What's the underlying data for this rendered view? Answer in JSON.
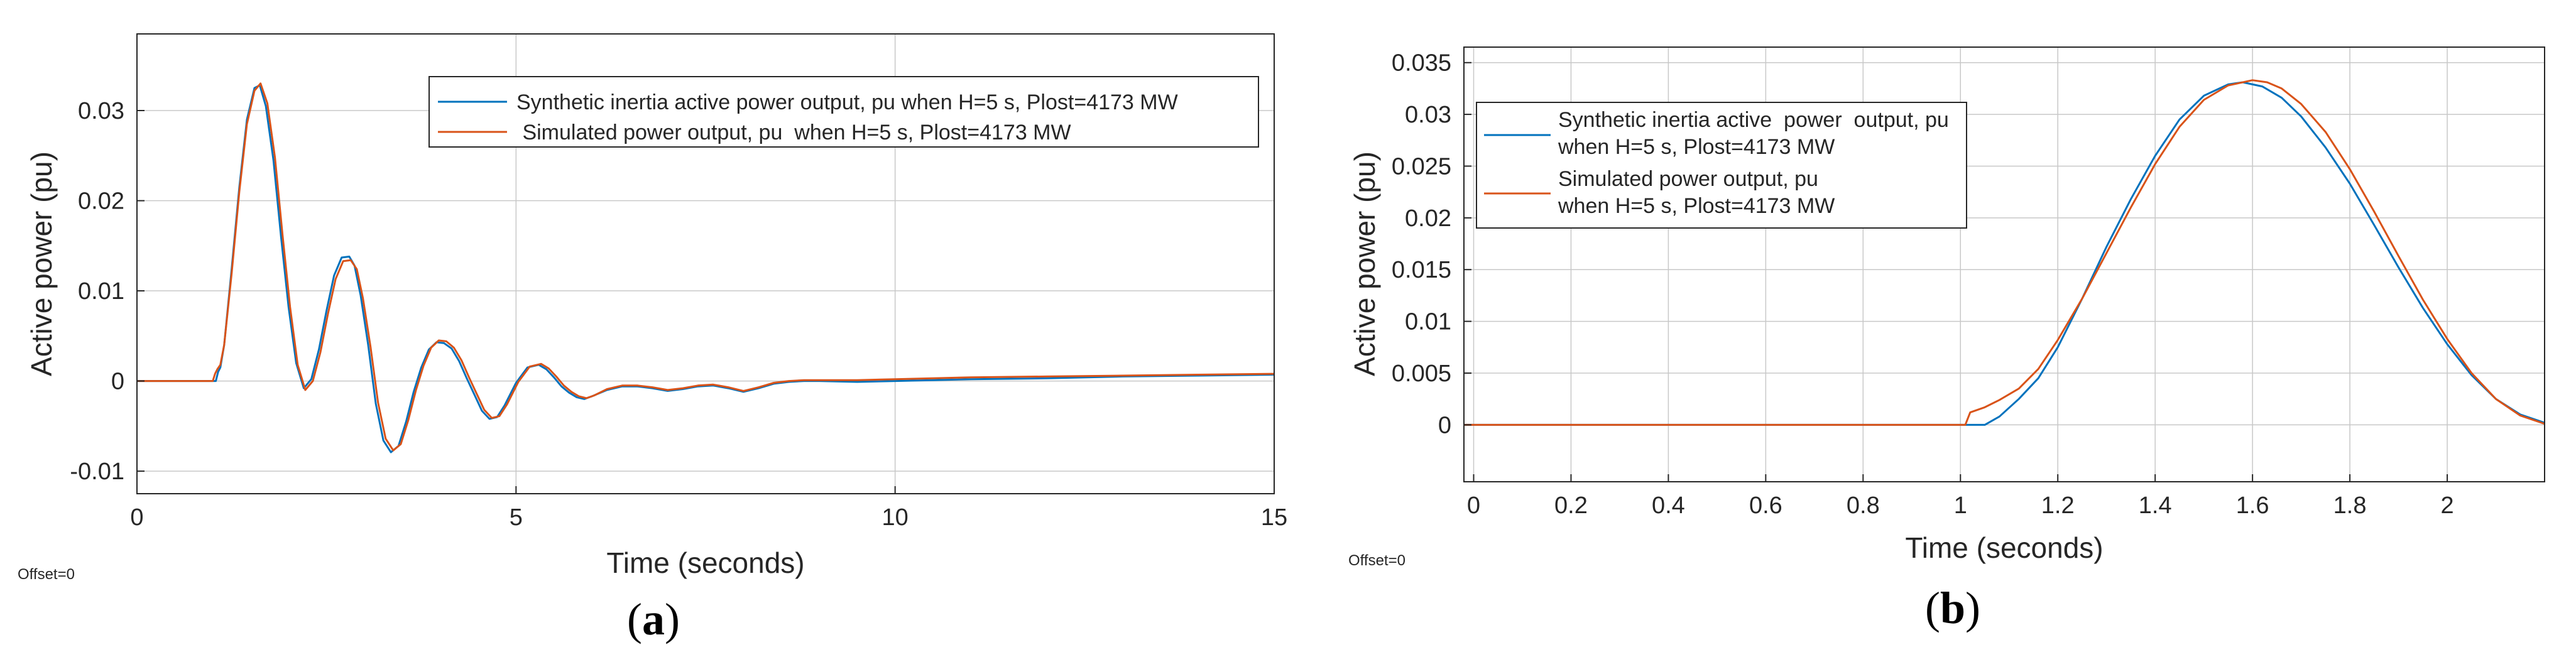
{
  "colors": {
    "series_1": "#0072BD",
    "series_2": "#D95319",
    "grid": "#c8c8c8",
    "axis": "#262626"
  },
  "chart_data": [
    {
      "id": "a",
      "type": "line",
      "panel_label": "a",
      "xlabel": "Time (seconds)",
      "ylabel": "Active power (pu)",
      "offset_text": "Offset=0",
      "xlim": [
        0,
        15
      ],
      "ylim": [
        -0.0125,
        0.0385
      ],
      "xticks": [
        0,
        5,
        10,
        15
      ],
      "xtick_labels": [
        "0",
        "5",
        "10",
        "15"
      ],
      "yticks": [
        -0.01,
        0,
        0.01,
        0.02,
        0.03
      ],
      "ytick_labels": [
        "-0.01",
        "0",
        "0.01",
        "0.02",
        "0.03"
      ],
      "grid": true,
      "legend_position": "top-right",
      "series": [
        {
          "name": "Synthetic inertia active  power  output, pu when H=5 s, Plost=4173 MW",
          "color": "#0072BD",
          "x": [
            0,
            0.5,
            1.0,
            1.04,
            1.07,
            1.1,
            1.15,
            1.25,
            1.35,
            1.45,
            1.55,
            1.62,
            1.7,
            1.8,
            1.9,
            2.0,
            2.1,
            2.2,
            2.3,
            2.4,
            2.5,
            2.6,
            2.7,
            2.8,
            2.87,
            2.95,
            3.05,
            3.15,
            3.25,
            3.35,
            3.45,
            3.55,
            3.65,
            3.75,
            3.85,
            3.95,
            4.05,
            4.15,
            4.25,
            4.35,
            4.45,
            4.55,
            4.65,
            4.75,
            4.85,
            5.0,
            5.15,
            5.3,
            5.4,
            5.5,
            5.6,
            5.7,
            5.8,
            5.9,
            6.0,
            6.2,
            6.4,
            6.6,
            6.8,
            7.0,
            7.2,
            7.4,
            7.6,
            7.8,
            8.0,
            8.2,
            8.4,
            8.6,
            8.8,
            9.0,
            9.5,
            10.0,
            11.0,
            12.0,
            13.0,
            14.0,
            15.0
          ],
          "y": [
            0,
            0,
            0,
            0,
            0.001,
            0.0015,
            0.004,
            0.0125,
            0.0215,
            0.029,
            0.0325,
            0.0328,
            0.0305,
            0.0245,
            0.016,
            0.0082,
            0.002,
            -0.0008,
            0.0002,
            0.0035,
            0.0078,
            0.0117,
            0.0137,
            0.0138,
            0.0128,
            0.0095,
            0.004,
            -0.0025,
            -0.0066,
            -0.0079,
            -0.0072,
            -0.0045,
            -0.0012,
            0.0015,
            0.0035,
            0.0043,
            0.0042,
            0.0036,
            0.0022,
            0.0003,
            -0.0015,
            -0.0033,
            -0.0042,
            -0.004,
            -0.0027,
            -0.0002,
            0.0015,
            0.0018,
            0.0013,
            0.0004,
            -0.0006,
            -0.0013,
            -0.0018,
            -0.002,
            -0.0017,
            -0.001,
            -0.0006,
            -0.0006,
            -0.0008,
            -0.0011,
            -0.0009,
            -0.0006,
            -0.0005,
            -0.0008,
            -0.0012,
            -0.0008,
            -0.0003,
            -0.0001,
            0,
            0,
            -0.0001,
            0,
            0.0002,
            0.0003,
            0.0005,
            0.0006,
            0.0007
          ]
        },
        {
          "name": " Simulated power output, pu  when H=5 s, Plost=4173 MW",
          "color": "#D95319",
          "x": [
            0,
            0.5,
            1.0,
            1.03,
            1.06,
            1.1,
            1.15,
            1.25,
            1.35,
            1.45,
            1.55,
            1.63,
            1.72,
            1.82,
            1.92,
            2.02,
            2.12,
            2.22,
            2.32,
            2.42,
            2.52,
            2.62,
            2.72,
            2.82,
            2.9,
            2.98,
            3.08,
            3.18,
            3.28,
            3.38,
            3.48,
            3.58,
            3.68,
            3.78,
            3.88,
            3.98,
            4.08,
            4.18,
            4.28,
            4.38,
            4.48,
            4.58,
            4.68,
            4.78,
            4.88,
            5.03,
            5.18,
            5.33,
            5.43,
            5.53,
            5.63,
            5.73,
            5.83,
            5.93,
            6.03,
            6.2,
            6.4,
            6.6,
            6.8,
            7.0,
            7.2,
            7.4,
            7.6,
            7.8,
            8.0,
            8.2,
            8.4,
            8.6,
            8.8,
            9.0,
            9.5,
            10.0,
            11.0,
            12.0,
            13.0,
            14.0,
            15.0
          ],
          "y": [
            0,
            0,
            0,
            0.0008,
            0.0013,
            0.0018,
            0.004,
            0.012,
            0.021,
            0.0285,
            0.0322,
            0.033,
            0.0308,
            0.0248,
            0.0162,
            0.0082,
            0.0018,
            -0.001,
            0.0,
            0.0032,
            0.0075,
            0.0113,
            0.0133,
            0.0134,
            0.0124,
            0.0092,
            0.0038,
            -0.0024,
            -0.0064,
            -0.0077,
            -0.007,
            -0.0043,
            -0.001,
            0.0017,
            0.0037,
            0.0045,
            0.0044,
            0.0037,
            0.0023,
            0.0004,
            -0.0014,
            -0.0032,
            -0.0041,
            -0.0039,
            -0.0026,
            -0.0001,
            0.0016,
            0.0019,
            0.0014,
            0.0005,
            -0.0005,
            -0.0012,
            -0.0017,
            -0.0019,
            -0.0016,
            -0.0009,
            -0.0005,
            -0.0005,
            -0.0007,
            -0.001,
            -0.0008,
            -0.0005,
            -0.0004,
            -0.0007,
            -0.0011,
            -0.0007,
            -0.0002,
            0,
            0.0001,
            0.0001,
            0.0001,
            0.0002,
            0.0004,
            0.0005,
            0.0006,
            0.0007,
            0.0008
          ]
        }
      ]
    },
    {
      "id": "b",
      "type": "line",
      "panel_label": "b",
      "xlabel": "Time (seconds)",
      "ylabel": "Active power (pu)",
      "offset_text": "Offset=0",
      "xlim": [
        -0.02,
        2.2
      ],
      "ylim": [
        -0.0055,
        0.0365
      ],
      "xticks": [
        0,
        0.2,
        0.4,
        0.6,
        0.8,
        1.0,
        1.2,
        1.4,
        1.6,
        1.8,
        2.0
      ],
      "xtick_labels": [
        "0",
        "0.2",
        "0.4",
        "0.6",
        "0.8",
        "1",
        "1.2",
        "1.4",
        "1.6",
        "1.8",
        "2"
      ],
      "yticks": [
        0,
        0.005,
        0.01,
        0.015,
        0.02,
        0.025,
        0.03,
        0.035
      ],
      "ytick_labels": [
        "0",
        "0.005",
        "0.01",
        "0.015",
        "0.02",
        "0.025",
        "0.03",
        "0.035"
      ],
      "grid": true,
      "legend_position": "top-left",
      "series": [
        {
          "name_lines": [
            "Synthetic inertia active  power  output, pu",
            "when H=5 s, Plost=4173 MW"
          ],
          "color": "#0072BD",
          "x": [
            -0.02,
            0.5,
            1.0,
            1.02,
            1.05,
            1.08,
            1.12,
            1.16,
            1.2,
            1.25,
            1.3,
            1.35,
            1.4,
            1.45,
            1.5,
            1.55,
            1.58,
            1.62,
            1.66,
            1.7,
            1.75,
            1.8,
            1.85,
            1.9,
            1.95,
            2.0,
            2.05,
            2.1,
            2.15,
            2.2
          ],
          "y": [
            0,
            0,
            0,
            0,
            0,
            0.0008,
            0.0025,
            0.0045,
            0.0075,
            0.0122,
            0.0172,
            0.0218,
            0.026,
            0.0295,
            0.0318,
            0.0329,
            0.0331,
            0.0327,
            0.0316,
            0.0298,
            0.0268,
            0.0233,
            0.0193,
            0.0152,
            0.0113,
            0.0078,
            0.0048,
            0.0025,
            0.001,
            0.0002
          ]
        },
        {
          "name_lines": [
            "Simulated power output, pu",
            "when H=5 s, Plost=4173 MW"
          ],
          "color": "#D95319",
          "x": [
            -0.02,
            0.5,
            1.0,
            1.01,
            1.02,
            1.05,
            1.08,
            1.12,
            1.16,
            1.2,
            1.25,
            1.3,
            1.35,
            1.4,
            1.45,
            1.5,
            1.55,
            1.6,
            1.63,
            1.66,
            1.7,
            1.75,
            1.8,
            1.85,
            1.9,
            1.95,
            2.0,
            2.05,
            2.1,
            2.15,
            2.2
          ],
          "y": [
            0,
            0,
            0,
            0,
            0.0012,
            0.0017,
            0.0024,
            0.0035,
            0.0054,
            0.0082,
            0.0122,
            0.0166,
            0.021,
            0.0252,
            0.0288,
            0.0314,
            0.0328,
            0.0333,
            0.0331,
            0.0325,
            0.031,
            0.0283,
            0.0247,
            0.0206,
            0.0163,
            0.0121,
            0.0083,
            0.005,
            0.0025,
            0.0009,
            0.0001
          ]
        }
      ]
    }
  ]
}
